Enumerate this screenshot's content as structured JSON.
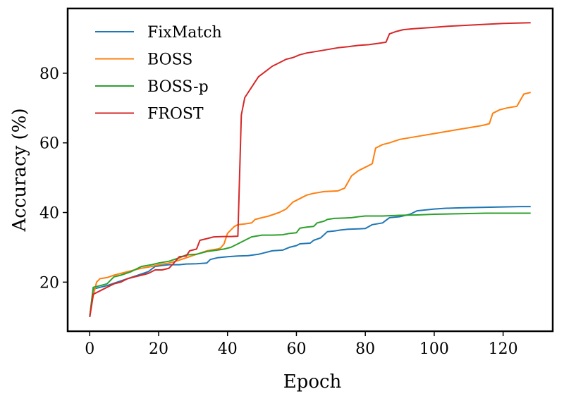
{
  "chart_data": {
    "type": "line",
    "title": "",
    "xlabel": "Epoch",
    "ylabel": "Accuracy (%)",
    "xlim": [
      -6.4,
      134.4
    ],
    "ylim": [
      5.9,
      98.6
    ],
    "xticks": [
      0,
      20,
      40,
      60,
      80,
      100,
      120
    ],
    "yticks": [
      20,
      40,
      60,
      80
    ],
    "grid": false,
    "legend_position": "top-left",
    "series": [
      {
        "name": "FixMatch",
        "color": "#1f77b4",
        "points": [
          [
            0,
            10
          ],
          [
            1,
            18
          ],
          [
            3,
            18.5
          ],
          [
            5,
            19
          ],
          [
            8,
            20
          ],
          [
            11,
            21
          ],
          [
            14,
            22
          ],
          [
            17,
            23
          ],
          [
            19,
            24.5
          ],
          [
            21,
            24.8
          ],
          [
            23,
            25
          ],
          [
            26,
            25
          ],
          [
            28,
            25.2
          ],
          [
            31,
            25.3
          ],
          [
            34,
            25.5
          ],
          [
            35,
            26.5
          ],
          [
            37,
            27
          ],
          [
            40,
            27.3
          ],
          [
            43,
            27.5
          ],
          [
            46,
            27.6
          ],
          [
            49,
            28
          ],
          [
            51,
            28.5
          ],
          [
            53,
            29
          ],
          [
            56,
            29.2
          ],
          [
            58,
            30
          ],
          [
            60,
            30.5
          ],
          [
            61,
            31
          ],
          [
            64,
            31.2
          ],
          [
            65,
            32
          ],
          [
            67,
            32.7
          ],
          [
            69,
            34.5
          ],
          [
            71,
            34.7
          ],
          [
            73,
            35
          ],
          [
            75,
            35.2
          ],
          [
            78,
            35.3
          ],
          [
            80,
            35.4
          ],
          [
            82,
            36.5
          ],
          [
            85,
            37
          ],
          [
            87,
            38.5
          ],
          [
            90,
            38.8
          ],
          [
            93,
            39.5
          ],
          [
            95,
            40.5
          ],
          [
            97,
            40.7
          ],
          [
            100,
            41
          ],
          [
            103,
            41.2
          ],
          [
            106,
            41.3
          ],
          [
            110,
            41.4
          ],
          [
            115,
            41.5
          ],
          [
            120,
            41.6
          ],
          [
            125,
            41.7
          ],
          [
            128,
            41.7
          ]
        ]
      },
      {
        "name": "BOSS",
        "color": "#ff7f0e",
        "points": [
          [
            0,
            10
          ],
          [
            1,
            16
          ],
          [
            2,
            20
          ],
          [
            3,
            21
          ],
          [
            5,
            21.3
          ],
          [
            7,
            22
          ],
          [
            9,
            22.5
          ],
          [
            11,
            23
          ],
          [
            13,
            23.5
          ],
          [
            15,
            24
          ],
          [
            18,
            24.5
          ],
          [
            20,
            25
          ],
          [
            23,
            25.5
          ],
          [
            25,
            26
          ],
          [
            28,
            27
          ],
          [
            31,
            28
          ],
          [
            34,
            29
          ],
          [
            37,
            29.5
          ],
          [
            38,
            29.8
          ],
          [
            39,
            31
          ],
          [
            40,
            34
          ],
          [
            41,
            35
          ],
          [
            42,
            36
          ],
          [
            43,
            36.5
          ],
          [
            45,
            36.7
          ],
          [
            47,
            37
          ],
          [
            48,
            38
          ],
          [
            50,
            38.5
          ],
          [
            52,
            39
          ],
          [
            55,
            40
          ],
          [
            57,
            41
          ],
          [
            59,
            43
          ],
          [
            61,
            44
          ],
          [
            63,
            45
          ],
          [
            65,
            45.5
          ],
          [
            68,
            46
          ],
          [
            72,
            46.2
          ],
          [
            74,
            47
          ],
          [
            76,
            50.5
          ],
          [
            78,
            52
          ],
          [
            80,
            53
          ],
          [
            82,
            54
          ],
          [
            83,
            58.5
          ],
          [
            85,
            59.5
          ],
          [
            87,
            60
          ],
          [
            90,
            61
          ],
          [
            93,
            61.5
          ],
          [
            96,
            62
          ],
          [
            99,
            62.5
          ],
          [
            102,
            63
          ],
          [
            105,
            63.5
          ],
          [
            108,
            64
          ],
          [
            111,
            64.5
          ],
          [
            114,
            65
          ],
          [
            116,
            65.5
          ],
          [
            117,
            68.5
          ],
          [
            119,
            69.5
          ],
          [
            121,
            70
          ],
          [
            124,
            70.5
          ],
          [
            126,
            74
          ],
          [
            128,
            74.5
          ]
        ]
      },
      {
        "name": "BOSS-p",
        "color": "#2ca02c",
        "points": [
          [
            0,
            10
          ],
          [
            1,
            18.5
          ],
          [
            3,
            19
          ],
          [
            5,
            19.5
          ],
          [
            7,
            21.5
          ],
          [
            9,
            22
          ],
          [
            12,
            23
          ],
          [
            15,
            24.5
          ],
          [
            18,
            25
          ],
          [
            20,
            25.5
          ],
          [
            23,
            26
          ],
          [
            26,
            27
          ],
          [
            28,
            27.8
          ],
          [
            31,
            28
          ],
          [
            34,
            28.8
          ],
          [
            37,
            29.2
          ],
          [
            39,
            29.5
          ],
          [
            41,
            30
          ],
          [
            43,
            31
          ],
          [
            45,
            32
          ],
          [
            47,
            33
          ],
          [
            50,
            33.5
          ],
          [
            53,
            33.5
          ],
          [
            56,
            33.6
          ],
          [
            58,
            34
          ],
          [
            60,
            34.2
          ],
          [
            61,
            35.5
          ],
          [
            63,
            35.8
          ],
          [
            65,
            36
          ],
          [
            66,
            37
          ],
          [
            68,
            37.5
          ],
          [
            69,
            38
          ],
          [
            71,
            38.3
          ],
          [
            74,
            38.4
          ],
          [
            76,
            38.5
          ],
          [
            78,
            38.8
          ],
          [
            80,
            39
          ],
          [
            85,
            39
          ],
          [
            90,
            39.2
          ],
          [
            95,
            39.3
          ],
          [
            100,
            39.5
          ],
          [
            105,
            39.6
          ],
          [
            110,
            39.7
          ],
          [
            115,
            39.8
          ],
          [
            120,
            39.8
          ],
          [
            128,
            39.8
          ]
        ]
      },
      {
        "name": "FROST",
        "color": "#d62728",
        "points": [
          [
            0,
            10
          ],
          [
            1,
            16.5
          ],
          [
            3,
            17.5
          ],
          [
            5,
            18.5
          ],
          [
            7,
            19.5
          ],
          [
            9,
            20
          ],
          [
            11,
            21
          ],
          [
            13,
            21.5
          ],
          [
            15,
            22
          ],
          [
            17,
            22.5
          ],
          [
            19,
            23.5
          ],
          [
            21,
            23.5
          ],
          [
            23,
            24
          ],
          [
            24,
            25
          ],
          [
            26,
            27.3
          ],
          [
            28,
            27.5
          ],
          [
            29,
            29
          ],
          [
            31,
            29.5
          ],
          [
            32,
            32
          ],
          [
            34,
            32.5
          ],
          [
            36,
            33
          ],
          [
            39,
            33.1
          ],
          [
            41,
            33.1
          ],
          [
            43,
            33.2
          ],
          [
            44,
            68
          ],
          [
            45,
            73
          ],
          [
            47,
            76
          ],
          [
            49,
            79
          ],
          [
            51,
            80.5
          ],
          [
            53,
            82
          ],
          [
            55,
            83
          ],
          [
            57,
            84
          ],
          [
            59,
            84.5
          ],
          [
            61,
            85.3
          ],
          [
            63,
            85.8
          ],
          [
            66,
            86.3
          ],
          [
            69,
            86.8
          ],
          [
            72,
            87.3
          ],
          [
            75,
            87.6
          ],
          [
            78,
            88
          ],
          [
            81,
            88.2
          ],
          [
            84,
            88.6
          ],
          [
            86,
            88.9
          ],
          [
            87,
            91.3
          ],
          [
            89,
            92
          ],
          [
            91,
            92.5
          ],
          [
            94,
            92.8
          ],
          [
            97,
            93
          ],
          [
            100,
            93.2
          ],
          [
            104,
            93.5
          ],
          [
            108,
            93.7
          ],
          [
            112,
            93.9
          ],
          [
            116,
            94.1
          ],
          [
            120,
            94.3
          ],
          [
            124,
            94.4
          ],
          [
            128,
            94.5
          ]
        ]
      }
    ]
  }
}
